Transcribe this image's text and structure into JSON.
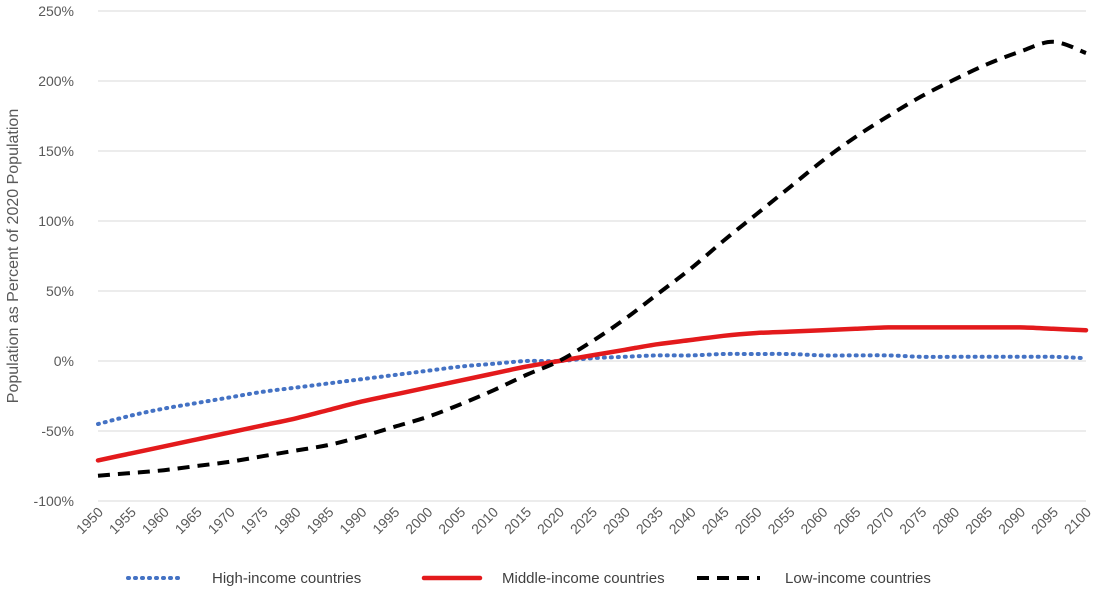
{
  "chart_data": {
    "type": "line",
    "title": "",
    "xlabel": "",
    "ylabel": "Population as Percent of 2020 Population",
    "x": [
      1950,
      1955,
      1960,
      1965,
      1970,
      1975,
      1980,
      1985,
      1990,
      1995,
      2000,
      2005,
      2010,
      2015,
      2020,
      2025,
      2030,
      2035,
      2040,
      2045,
      2050,
      2055,
      2060,
      2065,
      2070,
      2075,
      2080,
      2085,
      2090,
      2095,
      2100
    ],
    "x_tick_labels": [
      "1950",
      "1955",
      "1960",
      "1965",
      "1970",
      "1975",
      "1980",
      "1985",
      "1990",
      "1995",
      "2000",
      "2005",
      "2010",
      "2015",
      "2020",
      "2025",
      "2030",
      "2035",
      "2040",
      "2045",
      "2050",
      "2055",
      "2060",
      "2065",
      "2070",
      "2075",
      "2080",
      "2085",
      "2090",
      "2095",
      "2100"
    ],
    "ylim": [
      -100,
      250
    ],
    "y_ticks": [
      -100,
      -50,
      0,
      50,
      100,
      150,
      200,
      250
    ],
    "y_tick_labels": [
      "-100%",
      "-50%",
      "0%",
      "50%",
      "100%",
      "150%",
      "200%",
      "250%"
    ],
    "grid": "horizontal",
    "legend_position": "bottom",
    "series": [
      {
        "name": "High-income countries",
        "style": "dotted",
        "color": "#4472c4",
        "values": [
          -45,
          -39,
          -34,
          -30,
          -26,
          -22,
          -19,
          -16,
          -13,
          -10,
          -7,
          -4,
          -2,
          0,
          0,
          2,
          3,
          4,
          4,
          5,
          5,
          5,
          4,
          4,
          4,
          3,
          3,
          3,
          3,
          3,
          2
        ]
      },
      {
        "name": "Middle-income countries",
        "style": "solid",
        "color": "#e31a1c",
        "values": [
          -71,
          -66,
          -61,
          -56,
          -51,
          -46,
          -41,
          -35,
          -29,
          -24,
          -19,
          -14,
          -9,
          -4,
          0,
          4,
          8,
          12,
          15,
          18,
          20,
          21,
          22,
          23,
          24,
          24,
          24,
          24,
          24,
          23,
          22
        ]
      },
      {
        "name": "Low-income countries",
        "style": "dashed",
        "color": "#000000",
        "values": [
          -82,
          -80,
          -78,
          -75,
          -72,
          -68,
          -64,
          -60,
          -54,
          -47,
          -40,
          -31,
          -21,
          -10,
          0,
          14,
          30,
          48,
          66,
          86,
          105,
          124,
          143,
          160,
          175,
          189,
          201,
          212,
          221,
          228,
          220
        ]
      }
    ]
  }
}
